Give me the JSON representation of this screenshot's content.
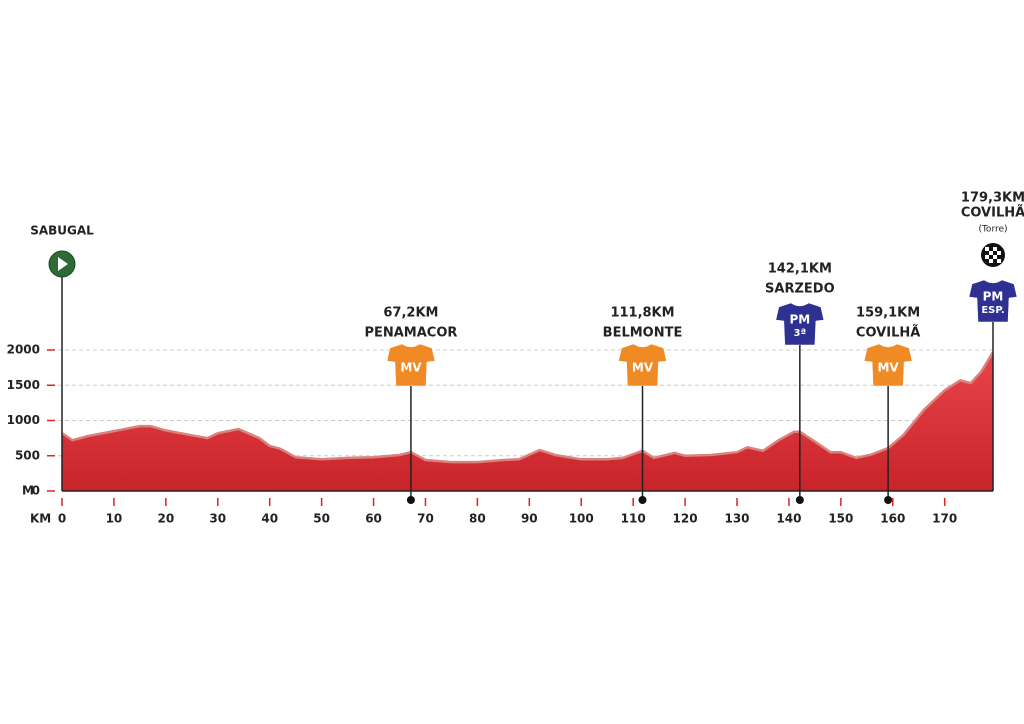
{
  "chart_data": {
    "type": "area",
    "xlabel": "KM",
    "ylabel": "M",
    "x": [
      0,
      2,
      5,
      10,
      15,
      17,
      20,
      25,
      28,
      30,
      34,
      38,
      40,
      42,
      45,
      50,
      55,
      60,
      65,
      67.2,
      70,
      75,
      80,
      85,
      88,
      92,
      95,
      100,
      105,
      108,
      111.8,
      114,
      118,
      120,
      125,
      130,
      132,
      135,
      138,
      141,
      142.1,
      145,
      148,
      150,
      153,
      156,
      159.1,
      162,
      166,
      170,
      173,
      175,
      177,
      179.3
    ],
    "values": [
      820,
      720,
      780,
      850,
      920,
      920,
      860,
      790,
      750,
      820,
      880,
      750,
      640,
      600,
      480,
      450,
      470,
      480,
      510,
      550,
      440,
      410,
      410,
      440,
      450,
      580,
      510,
      450,
      450,
      470,
      570,
      470,
      540,
      500,
      510,
      550,
      620,
      570,
      720,
      840,
      840,
      700,
      550,
      550,
      470,
      520,
      610,
      790,
      1150,
      1430,
      1570,
      1530,
      1690,
      1970
    ],
    "color": "#e2383c",
    "xlim": [
      0,
      179.3
    ],
    "ylim": [
      0,
      2000
    ],
    "xticks": [
      0,
      10,
      20,
      30,
      40,
      50,
      60,
      70,
      80,
      90,
      100,
      110,
      120,
      130,
      140,
      150,
      160,
      170
    ],
    "yticks": [
      0,
      500,
      1000,
      1500,
      2000
    ],
    "grid": true,
    "markers": [
      {
        "km": 0,
        "name": "SABUGAL"
      },
      {
        "km": 67.2,
        "distance": "67,2KM",
        "name": "PENAMACOR",
        "jersey": "MV"
      },
      {
        "km": 111.8,
        "distance": "111,8KM",
        "name": "BELMONTE",
        "jersey": "MV"
      },
      {
        "km": 142.1,
        "distance": "142,1KM",
        "name": "SARZEDO",
        "jersey": "PM",
        "jersey_sub": "3ª"
      },
      {
        "km": 159.1,
        "distance": "159,1KM",
        "name": "COVILHÃ",
        "jersey": "MV"
      },
      {
        "km": 179.3,
        "distance": "179,3KM",
        "name": "COVILHÃ",
        "note": "(Torre)",
        "jersey": "PM",
        "jersey_sub": "ESP."
      }
    ]
  }
}
